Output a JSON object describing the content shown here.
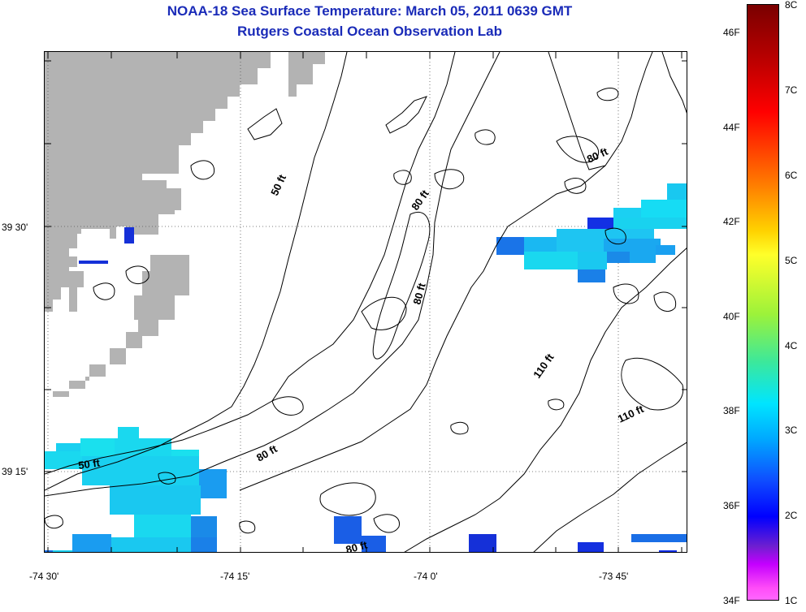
{
  "title": {
    "line1": "NOAA-18 Sea Surface Temperature:  March 05, 2011 0639 GMT",
    "line2": "Rutgers Coastal Ocean Observation Lab"
  },
  "map": {
    "latitude_labels": [
      "39 30'",
      "39 15'"
    ],
    "longitude_labels": [
      "-74 30'",
      "-74 15'",
      "-74 0'",
      "-73 45'"
    ],
    "land_color": "#b3b3b3",
    "contour_labels": [
      "50 ft",
      "80 ft",
      "80 ft",
      "80 ft",
      "110 ft",
      "110 ft",
      "50 ft",
      "80 ft",
      "80 ft"
    ]
  },
  "colorbar": {
    "fahrenheit_labels": [
      "46F",
      "44F",
      "42F",
      "40F",
      "38F",
      "36F",
      "34F"
    ],
    "celsius_labels": [
      "8C",
      "7C",
      "6C",
      "5C",
      "4C",
      "3C",
      "2C",
      "1C"
    ]
  }
}
